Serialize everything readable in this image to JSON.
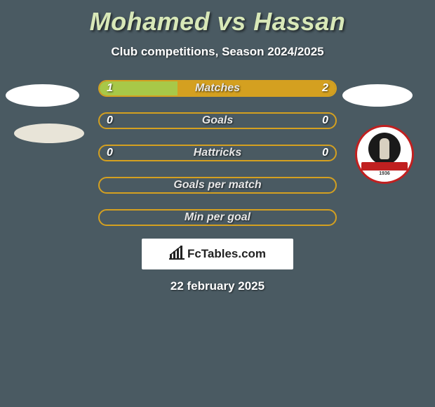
{
  "title": "Mohamed vs Hassan",
  "subtitle": "Club competitions, Season 2024/2025",
  "date": "22 february 2025",
  "fctables_label": "FcTables.com",
  "colors": {
    "background": "#4a5a62",
    "title_color": "#d8e8b8",
    "bar_border": "#d4a020",
    "left_fill": "#a8c848",
    "right_fill": "#d4a020",
    "white": "#ffffff"
  },
  "bars": [
    {
      "label": "Matches",
      "left_val": "1",
      "right_val": "2",
      "left_pct": 33,
      "right_pct": 67,
      "show_vals": true
    },
    {
      "label": "Goals",
      "left_val": "0",
      "right_val": "0",
      "left_pct": 0,
      "right_pct": 0,
      "show_vals": true
    },
    {
      "label": "Hattricks",
      "left_val": "0",
      "right_val": "0",
      "left_pct": 0,
      "right_pct": 0,
      "show_vals": true
    },
    {
      "label": "Goals per match",
      "left_val": "",
      "right_val": "",
      "left_pct": 0,
      "right_pct": 0,
      "show_vals": false
    },
    {
      "label": "Min per goal",
      "left_val": "",
      "right_val": "",
      "left_pct": 0,
      "right_pct": 0,
      "show_vals": false
    }
  ],
  "badge": {
    "year": "1936"
  }
}
